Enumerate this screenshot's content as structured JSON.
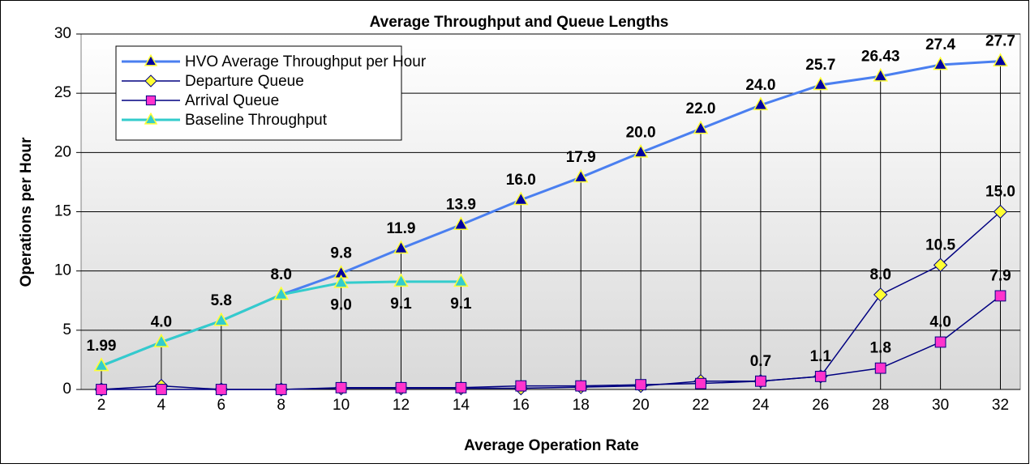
{
  "chart_data": {
    "type": "line",
    "title": "Average Throughput and Queue Lengths",
    "x_label": "Average Operation Rate",
    "y_label": "Operations per Hour",
    "categories": [
      2,
      4,
      6,
      8,
      10,
      12,
      14,
      16,
      18,
      20,
      22,
      24,
      26,
      28,
      30,
      32
    ],
    "ylim": [
      0,
      30
    ],
    "yticks": [
      0,
      5,
      10,
      15,
      20,
      25,
      30
    ],
    "grid": true,
    "legend": "upper left",
    "series": [
      {
        "name": "HVO Average Throughput per Hour",
        "color": "#4a7ff0",
        "marker": "triangle",
        "marker_color": "#0000a0",
        "values": [
          1.99,
          4.0,
          5.8,
          8.0,
          9.8,
          11.9,
          13.9,
          16.0,
          17.9,
          20.0,
          22.0,
          24.0,
          25.7,
          26.43,
          27.4,
          27.7
        ],
        "value_labels": [
          "1.99",
          "4.0",
          "5.8",
          "8.0",
          "9.8",
          "11.9",
          "13.9",
          "16.0",
          "17.9",
          "20.0",
          "22.0",
          "24.0",
          "25.7",
          "26.43",
          "27.4",
          "27.7"
        ]
      },
      {
        "name": "Departure Queue",
        "color": "#000080",
        "marker": "diamond",
        "marker_color": "#ffff33",
        "values": [
          0,
          0.3,
          0,
          0,
          0.1,
          0.1,
          0.1,
          0.1,
          0.2,
          0.3,
          0.7,
          0.7,
          1.1,
          8.0,
          10.5,
          15.0
        ],
        "value_labels": [
          null,
          null,
          null,
          null,
          null,
          null,
          null,
          null,
          null,
          null,
          null,
          null,
          null,
          "8.0",
          "10.5",
          "15.0"
        ]
      },
      {
        "name": "Arrival Queue",
        "color": "#000080",
        "marker": "square",
        "marker_color": "#ff33cc",
        "values": [
          0,
          0,
          0,
          0,
          0.15,
          0.15,
          0.15,
          0.3,
          0.3,
          0.4,
          0.5,
          0.7,
          1.1,
          1.8,
          4.0,
          7.9
        ],
        "value_labels": [
          null,
          null,
          null,
          null,
          null,
          null,
          null,
          null,
          null,
          null,
          null,
          "0.7",
          "1.1",
          "1.8",
          "4.0",
          "7.9"
        ]
      },
      {
        "name": "Baseline Throughput",
        "color": "#33cccc",
        "marker": "triangle",
        "marker_color": "#33cccc",
        "values": [
          1.99,
          4.0,
          5.8,
          8.0,
          9.0,
          9.1,
          9.1,
          null,
          null,
          null,
          null,
          null,
          null,
          null,
          null,
          null
        ],
        "value_labels": [
          null,
          null,
          null,
          null,
          "9.0",
          "9.1",
          "9.1",
          null,
          null,
          null,
          null,
          null,
          null,
          null,
          null,
          null
        ]
      }
    ]
  }
}
